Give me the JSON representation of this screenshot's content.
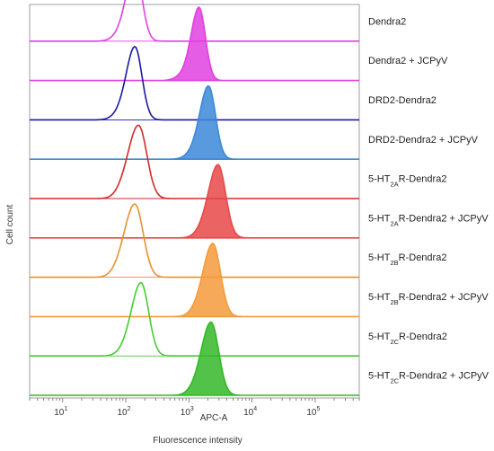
{
  "chart_data": {
    "type": "area",
    "title": "",
    "xlabel": "Fluorescence intensity",
    "xaxis_label": "APC-A",
    "ylabel": "Cell count",
    "xscale": "log",
    "xlim": [
      3,
      500000
    ],
    "xticks": [
      {
        "base": "10",
        "exp": "1"
      },
      {
        "base": "10",
        "exp": "2"
      },
      {
        "base": "10",
        "exp": "3"
      },
      {
        "base": "10",
        "exp": "4"
      },
      {
        "base": "10",
        "exp": "5"
      }
    ],
    "grid": false,
    "series": [
      {
        "label_parts": [
          [
            "Dendra2",
            ""
          ]
        ],
        "color": "#e040e0",
        "filled": false,
        "peak": 140,
        "sigma": 0.11
      },
      {
        "label_parts": [
          [
            "Dendra2 + JCPyV",
            ""
          ]
        ],
        "color": "#e040e0",
        "filled": true,
        "peak": 1450,
        "sigma": 0.1
      },
      {
        "label_parts": [
          [
            "DRD2-Dendra2",
            ""
          ]
        ],
        "color": "#1a1aa0",
        "filled": false,
        "peak": 140,
        "sigma": 0.11
      },
      {
        "label_parts": [
          [
            "DRD2-Dendra2 + JCPyV",
            ""
          ]
        ],
        "color": "#3c88d8",
        "filled": true,
        "peak": 2050,
        "sigma": 0.11
      },
      {
        "label_parts": [
          [
            "5-HT",
            "n"
          ],
          [
            "2A",
            "sub"
          ],
          [
            "R-Dendra2",
            "n"
          ]
        ],
        "color": "#d42a2a",
        "filled": false,
        "peak": 160,
        "sigma": 0.13
      },
      {
        "label_parts": [
          [
            "5-HT",
            "n"
          ],
          [
            "2A",
            "sub"
          ],
          [
            "R-Dendra2 + JCPyV",
            "n"
          ]
        ],
        "color": "#e84848",
        "filled": true,
        "peak": 2900,
        "sigma": 0.12
      },
      {
        "label_parts": [
          [
            "5-HT",
            "n"
          ],
          [
            "2B",
            "sub"
          ],
          [
            "R-Dendra2",
            "n"
          ]
        ],
        "color": "#e8902c",
        "filled": false,
        "peak": 140,
        "sigma": 0.13
      },
      {
        "label_parts": [
          [
            "5-HT",
            "n"
          ],
          [
            "2B",
            "sub"
          ],
          [
            "R-Dendra2 + JCPyV",
            "n"
          ]
        ],
        "color": "#f49a3c",
        "filled": true,
        "peak": 2400,
        "sigma": 0.12
      },
      {
        "label_parts": [
          [
            "5-HT",
            "n"
          ],
          [
            "2C",
            "sub"
          ],
          [
            "R-Dendra2",
            "n"
          ]
        ],
        "color": "#44cc30",
        "filled": false,
        "peak": 175,
        "sigma": 0.12
      },
      {
        "label_parts": [
          [
            "5-HT",
            "n"
          ],
          [
            "2C",
            "sub"
          ],
          [
            "R-Dendra2 + JCPyV",
            "n"
          ]
        ],
        "color": "#34b828",
        "filled": true,
        "peak": 2250,
        "sigma": 0.12
      }
    ]
  }
}
